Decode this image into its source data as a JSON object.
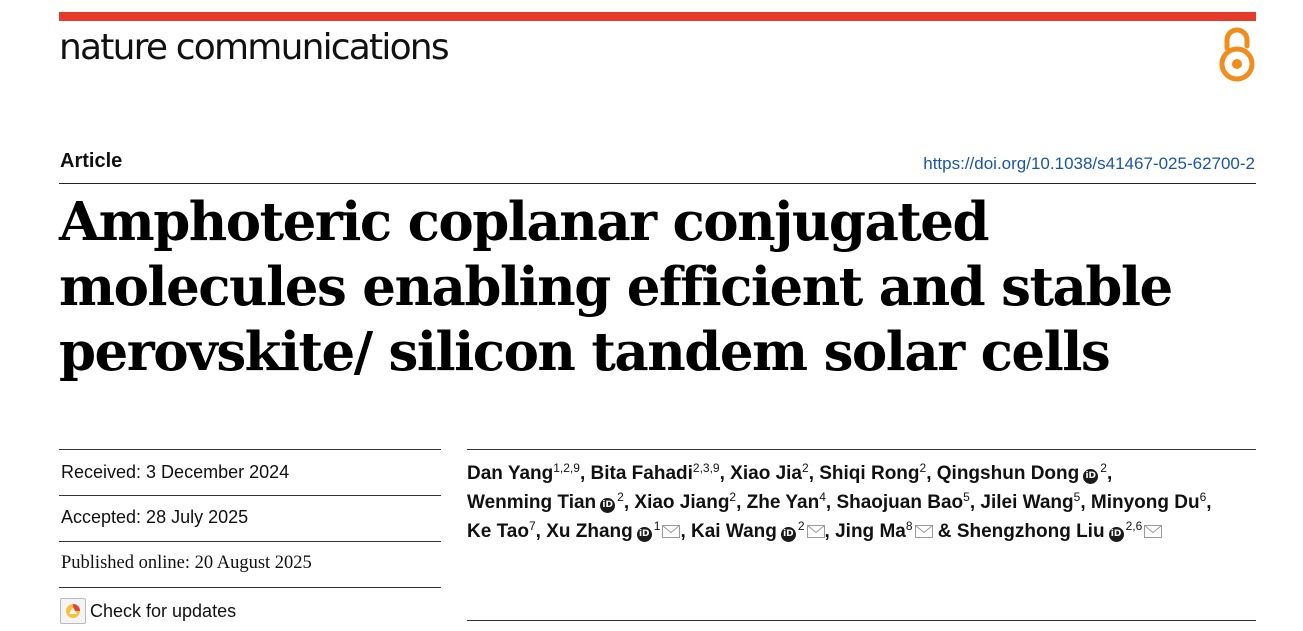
{
  "journal": {
    "name": "nature communications",
    "bar_color": "#e63a2a"
  },
  "article": {
    "type": "Article",
    "doi": "https://doi.org/10.1038/s41467-025-62700-2",
    "title": "Amphoteric coplanar conjugated molecules enabling efficient and stable perovskite/ silicon tandem solar cells"
  },
  "dates": {
    "received": "Received: 3 December 2024",
    "accepted": "Accepted: 28 July 2025",
    "published": "Published online: 20 August 2025"
  },
  "check_updates": {
    "label": "Check for updates"
  },
  "authors": [
    {
      "name": "Dan Yang",
      "aff": "1,2,9",
      "orcid": false,
      "email": false,
      "sep": ", "
    },
    {
      "name": "Bita Fahadi",
      "aff": "2,3,9",
      "orcid": false,
      "email": false,
      "sep": ", "
    },
    {
      "name": "Xiao Jia",
      "aff": "2",
      "orcid": false,
      "email": false,
      "sep": ", "
    },
    {
      "name": "Shiqi Rong",
      "aff": "2",
      "orcid": false,
      "email": false,
      "sep": ", "
    },
    {
      "name": "Qingshun Dong",
      "aff": "2",
      "orcid": true,
      "email": false,
      "sep": ", "
    },
    {
      "name": "Wenming Tian",
      "aff": "2",
      "orcid": true,
      "email": false,
      "sep": ", "
    },
    {
      "name": "Xiao Jiang",
      "aff": "2",
      "orcid": false,
      "email": false,
      "sep": ", "
    },
    {
      "name": "Zhe Yan",
      "aff": "4",
      "orcid": false,
      "email": false,
      "sep": ", "
    },
    {
      "name": "Shaojuan Bao",
      "aff": "5",
      "orcid": false,
      "email": false,
      "sep": ", "
    },
    {
      "name": "Jilei Wang",
      "aff": "5",
      "orcid": false,
      "email": false,
      "sep": ", "
    },
    {
      "name": "Minyong Du",
      "aff": "6",
      "orcid": false,
      "email": false,
      "sep": ", "
    },
    {
      "name": "Ke Tao",
      "aff": "7",
      "orcid": false,
      "email": false,
      "sep": ", "
    },
    {
      "name": "Xu Zhang",
      "aff": "1",
      "orcid": true,
      "email": true,
      "sep": ", "
    },
    {
      "name": "Kai Wang",
      "aff": "2",
      "orcid": true,
      "email": true,
      "sep": ", "
    },
    {
      "name": "Jing Ma",
      "aff": "8",
      "orcid": false,
      "email": true,
      "sep": " & "
    },
    {
      "name": "Shengzhong Liu",
      "aff": "2,6",
      "orcid": true,
      "email": true,
      "sep": ""
    }
  ]
}
